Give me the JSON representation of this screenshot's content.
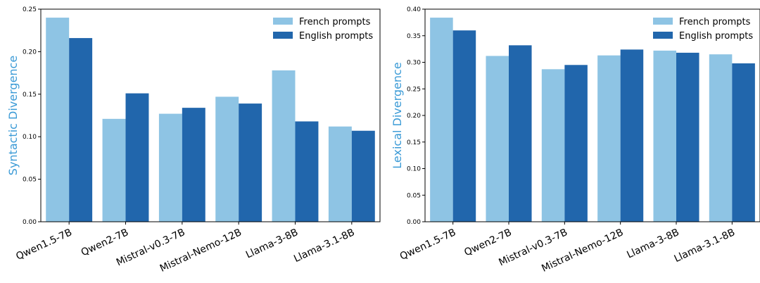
{
  "colors": {
    "french": "#8ec4e4",
    "english": "#2166ac",
    "ylabel": "#3a9ad6"
  },
  "chart_data": [
    {
      "type": "bar",
      "categories": [
        "Qwen1.5-7B",
        "Qwen2-7B",
        "Mistral-v0.3-7B",
        "Mistral-Nemo-12B",
        "Llama-3-8B",
        "Llama-3.1-8B"
      ],
      "series": [
        {
          "name": "French prompts",
          "values": [
            0.24,
            0.121,
            0.127,
            0.147,
            0.178,
            0.112
          ]
        },
        {
          "name": "English prompts",
          "values": [
            0.216,
            0.151,
            0.134,
            0.139,
            0.118,
            0.107
          ]
        }
      ],
      "ylabel": "Syntactic Divergence",
      "xlabel": "",
      "ylim": [
        0,
        0.25
      ],
      "yticks": [
        "0.00",
        "0.05",
        "0.10",
        "0.15",
        "0.20",
        "0.25"
      ],
      "legend": "top-right",
      "grid": false
    },
    {
      "type": "bar",
      "categories": [
        "Qwen1.5-7B",
        "Qwen2-7B",
        "Mistral-v0.3-7B",
        "Mistral-Nemo-12B",
        "Llama-3-8B",
        "Llama-3.1-8B"
      ],
      "series": [
        {
          "name": "French prompts",
          "values": [
            0.384,
            0.312,
            0.287,
            0.313,
            0.322,
            0.315
          ]
        },
        {
          "name": "English prompts",
          "values": [
            0.36,
            0.332,
            0.295,
            0.324,
            0.318,
            0.298
          ]
        }
      ],
      "ylabel": "Lexical Divergence",
      "xlabel": "",
      "ylim": [
        0,
        0.4
      ],
      "yticks": [
        "0.00",
        "0.05",
        "0.10",
        "0.15",
        "0.20",
        "0.25",
        "0.30",
        "0.35",
        "0.40"
      ],
      "legend": "top-right",
      "grid": false
    }
  ]
}
